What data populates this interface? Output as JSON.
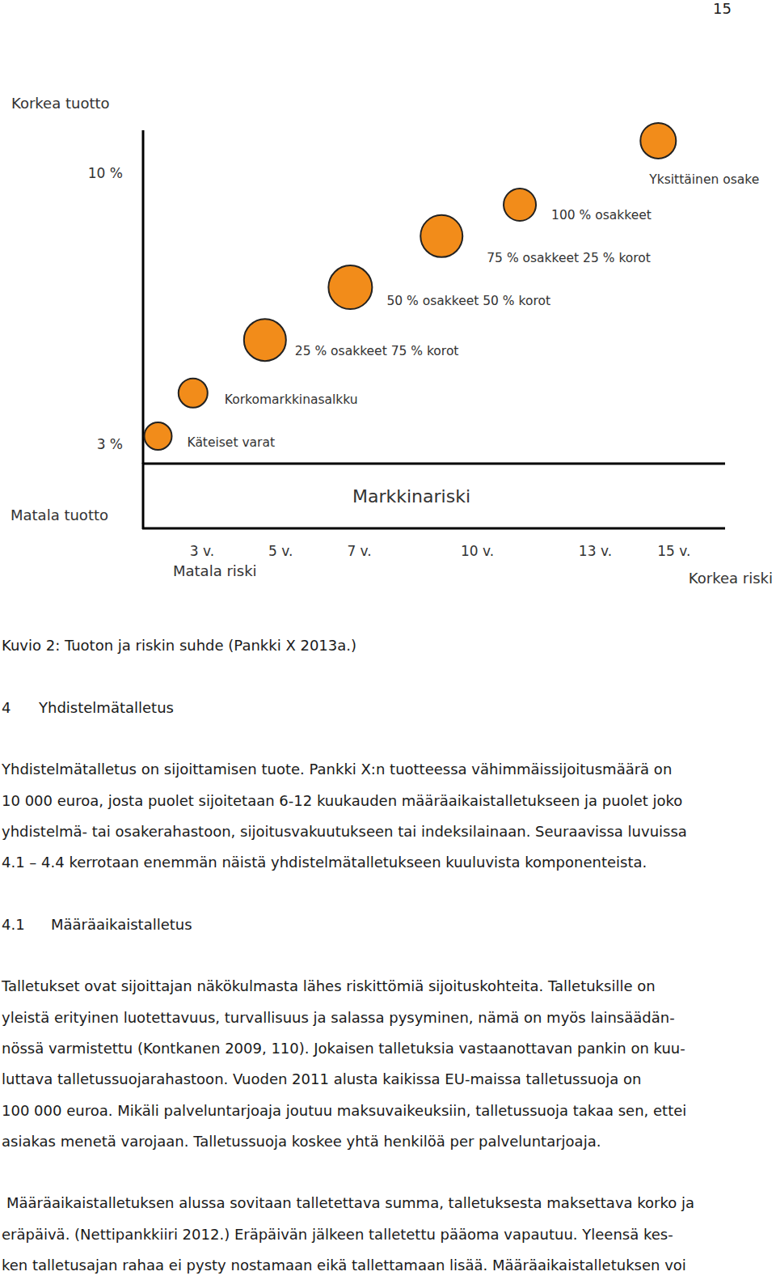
{
  "page_number": "15",
  "chart_data": {
    "type": "scatter",
    "y_label_high": "Korkea tuotto",
    "y_label_low": "Matala tuotto",
    "x_label": "Markkinariski",
    "x_label_low": "Matala riski",
    "x_label_high": "Korkea riski",
    "xlim": [
      1.5,
      16.3
    ],
    "xticks": [
      {
        "value": 3,
        "label": "3 v."
      },
      {
        "value": 5,
        "label": "5 v."
      },
      {
        "value": 7,
        "label": "7 v."
      },
      {
        "value": 10,
        "label": "10 v."
      },
      {
        "value": 13,
        "label": "13 v."
      },
      {
        "value": 15,
        "label": "15 v."
      }
    ],
    "ylim": [
      2.5,
      11.1
    ],
    "yticks": [
      {
        "value": 3,
        "label": "3 %"
      },
      {
        "value": 10,
        "label": "10 %"
      }
    ],
    "color": "#f28c1a",
    "point_labels": [
      "Käteiset varat",
      "Korkomarkkinasalkku",
      "25 % osakkeet 75 % korot",
      "50 % osakkeet 50 % korot",
      "75 % osakkeet 25 % korot",
      "100 % osakkeet",
      "Yksittäinen osake"
    ],
    "x": [
      1.88,
      2.77,
      4.6,
      6.77,
      9.09,
      11.08,
      14.6
    ],
    "values": [
      3.21,
      4.32,
      5.69,
      7.05,
      8.37,
      9.18,
      10.83
    ],
    "sizes": [
      17,
      18,
      26,
      27,
      26,
      20,
      22
    ]
  },
  "caption": "Kuvio 2: Tuoton ja riskin suhde (Pankki X 2013a.)",
  "sections": [
    {
      "number": "4",
      "title": "Yhdistelmätalletus",
      "paragraphs": [
        [
          "Yhdistelmätalletus on sijoittamisen tuote. Pankki X:n tuotteessa vähimmäissijoitusmäärä on",
          "10 000 euroa, josta puolet sijoitetaan 6-12 kuukauden määräaikaistalletukseen ja puolet joko",
          "yhdistelmä- tai osakerahastoon, sijoitusvakuutukseen tai indeksilainaan. Seuraavissa luvuissa",
          "4.1 – 4.4 kerrotaan enemmän näistä yhdistelmätalletukseen kuuluvista komponenteista."
        ]
      ]
    },
    {
      "number": "4.1",
      "title": "Määräaikaistalletus",
      "paragraphs": [
        [
          "Talletukset ovat sijoittajan näkökulmasta lähes riskittömiä sijoituskohteita. Talletuksille on",
          "yleistä erityinen luotettavuus, turvallisuus ja salassa pysyminen, nämä on myös lainsäädän-",
          "nössä varmistettu (Kontkanen 2009, 110). Jokaisen talletuksia vastaanottavan pankin on kuu-",
          "luttava talletussuojarahastoon.  Vuoden 2011 alusta kaikissa EU-maissa talletussuoja on",
          "100 000 euroa. Mikäli palveluntarjoaja joutuu maksuvaikeuksiin, talletussuoja takaa sen, ettei",
          "asiakas menetä varojaan. Talletussuoja koskee yhtä henkilöä per palveluntarjoaja."
        ],
        [
          "Määräaikaistalletuksen alussa sovitaan talletettava summa, talletuksesta maksettava korko ja",
          "eräpäivä. (Nettipankkiiri 2012.) Eräpäivän jälkeen talletettu pääoma vapautuu. Yleensä kes-",
          "ken talletusajan rahaa ei pysty nostamaan eikä tallettamaan lisää. Määräaikaistalletuksen voi"
        ]
      ]
    }
  ]
}
